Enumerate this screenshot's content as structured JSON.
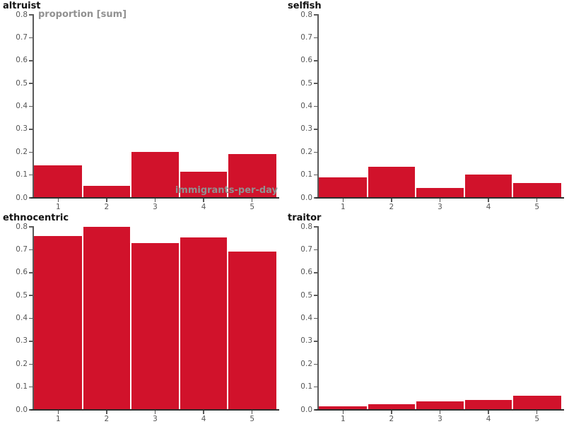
{
  "page": {
    "background": "#ffffff"
  },
  "colors": {
    "bar": "#d1122b",
    "bar_gap": "#ffffff",
    "y_axis": "#5a5a5a",
    "x_axis": "#2e2e2e",
    "tick": "#5a5a5a",
    "tick_label": "#555555",
    "panel_title": "#111111",
    "axis_title": "#919191"
  },
  "chart_data": [
    {
      "type": "bar",
      "title": "altruist",
      "ylabel": "proportion [sum]",
      "xlabel": "immigrants-per-day",
      "categories": [
        "1",
        "2",
        "3",
        "4",
        "5"
      ],
      "values": [
        0.14,
        0.048,
        0.197,
        0.11,
        0.187
      ],
      "ylim": [
        0,
        0.8
      ],
      "yticks": [
        "0.0",
        "0.1",
        "0.2",
        "0.3",
        "0.4",
        "0.5",
        "0.6",
        "0.7",
        "0.8"
      ],
      "grid": false,
      "legend": false
    },
    {
      "type": "bar",
      "title": "selfish",
      "ylabel": "",
      "xlabel": "",
      "categories": [
        "1",
        "2",
        "3",
        "4",
        "5"
      ],
      "values": [
        0.088,
        0.134,
        0.04,
        0.1,
        0.063
      ],
      "ylim": [
        0,
        0.8
      ],
      "yticks": [
        "0.0",
        "0.1",
        "0.2",
        "0.3",
        "0.4",
        "0.5",
        "0.6",
        "0.7",
        "0.8"
      ],
      "grid": false,
      "legend": false
    },
    {
      "type": "bar",
      "title": "ethnocentric",
      "ylabel": "",
      "xlabel": "",
      "categories": [
        "1",
        "2",
        "3",
        "4",
        "5"
      ],
      "values": [
        0.757,
        0.797,
        0.727,
        0.751,
        0.688
      ],
      "ylim": [
        0,
        0.8
      ],
      "yticks": [
        "0.0",
        "0.1",
        "0.2",
        "0.3",
        "0.4",
        "0.5",
        "0.6",
        "0.7",
        "0.8"
      ],
      "grid": false,
      "legend": false
    },
    {
      "type": "bar",
      "title": "traitor",
      "ylabel": "",
      "xlabel": "",
      "categories": [
        "1",
        "2",
        "3",
        "4",
        "5"
      ],
      "values": [
        0.012,
        0.023,
        0.033,
        0.041,
        0.059
      ],
      "ylim": [
        0,
        0.8
      ],
      "yticks": [
        "0.0",
        "0.1",
        "0.2",
        "0.3",
        "0.4",
        "0.5",
        "0.6",
        "0.7",
        "0.8"
      ],
      "grid": false,
      "legend": false
    }
  ]
}
